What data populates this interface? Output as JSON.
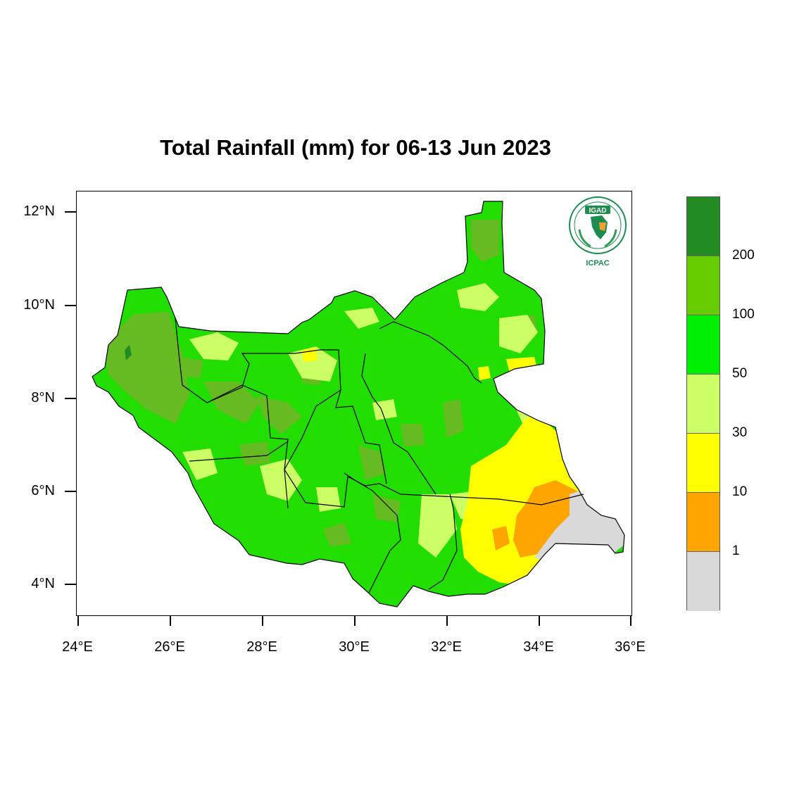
{
  "title": "Total Rainfall (mm) for 06-13 Jun 2023",
  "logo": {
    "top_text": "IGAD",
    "bottom_text": "ICPAC",
    "ring_text": "INTERGOVERNMENTAL AUTHORITY ON DEVELOPMENT"
  },
  "y_axis": {
    "ticks": [
      "12°N",
      "10°N",
      "8°N",
      "6°N",
      "4°N"
    ]
  },
  "x_axis": {
    "ticks": [
      "24°E",
      "26°E",
      "28°E",
      "30°E",
      "32°E",
      "34°E",
      "36°E"
    ]
  },
  "legend": {
    "labels": [
      "200",
      "100",
      "50",
      "30",
      "10",
      "1"
    ],
    "colors": [
      "#228b22",
      "#66cc00",
      "#00ee00",
      "#ccff66",
      "#ffff00",
      "#ffa500",
      "#d9d9d9"
    ]
  },
  "colors": {
    "border": "#000000",
    "region_100_200": "#66bb22",
    "region_50_100": "#22dd00",
    "region_30_50": "#ccff66",
    "region_10_30": "#ffff00",
    "region_1_10": "#ffa500",
    "region_0_1": "#d9d9d9"
  }
}
